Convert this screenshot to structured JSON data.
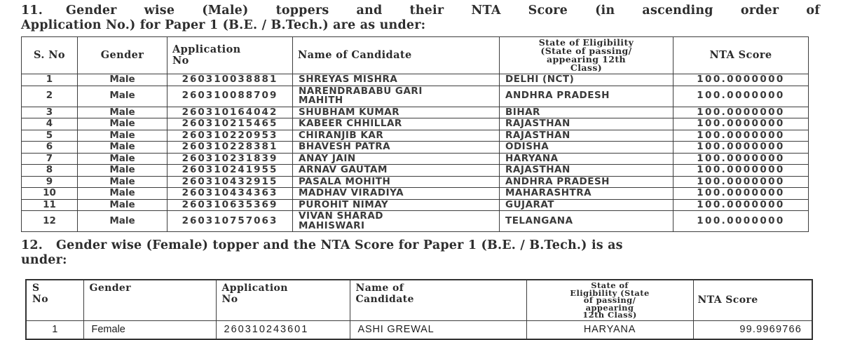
{
  "sections": [
    {
      "number": "11.",
      "heading_line1": "Gender wise (Male) toppers and their NTA Score (in ascending order of",
      "heading_line2": "Application No.) for Paper 1 (B.E. / B.Tech.) are as under:",
      "table": {
        "headers": [
          "S. No",
          "Gender",
          "Application\nNo",
          "Name of Candidate",
          "State of Eligibility\n(State of passing/\nappearing 12th\nClass)",
          "NTA Score"
        ],
        "rows": [
          [
            "1",
            "Male",
            "260310038881",
            "SHREYAS MISHRA",
            "DELHI (NCT)",
            "100.0000000"
          ],
          [
            "2",
            "Male",
            "260310088709",
            "NARENDRABABU GARI\nMAHITH",
            "ANDHRA PRADESH",
            "100.0000000"
          ],
          [
            "3",
            "Male",
            "260310164042",
            "SHUBHAM KUMAR",
            "BIHAR",
            "100.0000000"
          ],
          [
            "4",
            "Male",
            "260310215465",
            "KABEER CHHILLAR",
            "RAJASTHAN",
            "100.0000000"
          ],
          [
            "5",
            "Male",
            "260310220953",
            "CHIRANJIB KAR",
            "RAJASTHAN",
            "100.0000000"
          ],
          [
            "6",
            "Male",
            "260310228381",
            "BHAVESH PATRA",
            "ODISHA",
            "100.0000000"
          ],
          [
            "7",
            "Male",
            "260310231839",
            "ANAY JAIN",
            "HARYANA",
            "100.0000000"
          ],
          [
            "8",
            "Male",
            "260310241955",
            "ARNAV GAUTAM",
            "RAJASTHAN",
            "100.0000000"
          ],
          [
            "9",
            "Male",
            "260310432915",
            "PASALA MOHITH",
            "ANDHRA PRADESH",
            "100.0000000"
          ],
          [
            "10",
            "Male",
            "260310434363",
            "MADHAV VIRADIYA",
            "MAHARASHTRA",
            "100.0000000"
          ],
          [
            "11",
            "Male",
            "260310635369",
            "PUROHIT NIMAY",
            "GUJARAT",
            "100.0000000"
          ],
          [
            "12",
            "Male",
            "260310757063",
            "VIVAN SHARAD\nMAHISWARI",
            "TELANGANA",
            "100.0000000"
          ]
        ]
      }
    },
    {
      "number": "12.",
      "heading_line1": "Gender wise (Female) topper and the NTA Score for Paper 1 (B.E. / B.Tech.) is as",
      "heading_line2": "under:",
      "table": {
        "headers": [
          "S\nNo",
          "Gender",
          "Application\nNo",
          "Name of\nCandidate",
          "State of\nEligibility (State\nof passing/\nappearing\n12th Class)",
          "NTA Score"
        ],
        "rows": [
          [
            "1",
            "Female",
            "260310243601",
            "ASHI GREWAL",
            "HARYANA",
            "99.9969766"
          ]
        ]
      }
    }
  ]
}
